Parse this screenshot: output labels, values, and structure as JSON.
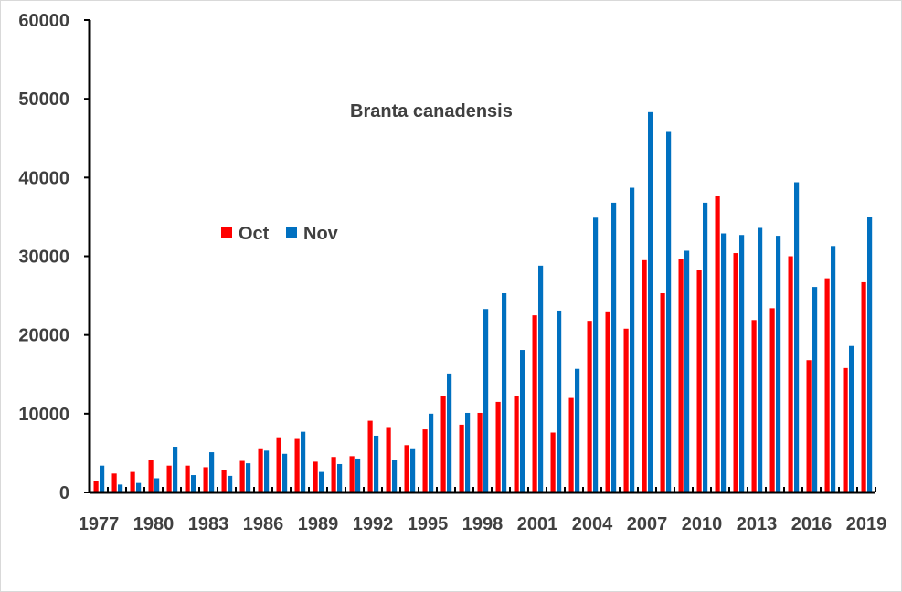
{
  "chart_data": {
    "type": "bar",
    "title": "Branta canadensis",
    "xlabel": "",
    "ylabel": "",
    "ylim": [
      0,
      60000
    ],
    "yticks": [
      0,
      10000,
      20000,
      30000,
      40000,
      50000,
      60000
    ],
    "grid": false,
    "legend_placement": "center-left",
    "categories": [
      "1977",
      "1978",
      "1979",
      "1980",
      "1981",
      "1982",
      "1983",
      "1984",
      "1985",
      "1986",
      "1987",
      "1988",
      "1989",
      "1990",
      "1991",
      "1992",
      "1993",
      "1994",
      "1995",
      "1996",
      "1997",
      "1998",
      "1999",
      "2000",
      "2001",
      "2002",
      "2003",
      "2004",
      "2005",
      "2006",
      "2007",
      "2008",
      "2009",
      "2010",
      "2011",
      "2012",
      "2013",
      "2014",
      "2015",
      "2016",
      "2017",
      "2018",
      "2019"
    ],
    "tick_label_every": 3,
    "series": [
      {
        "name": "Oct",
        "color": "#ff0000",
        "values": [
          1500,
          2400,
          2600,
          4100,
          3400,
          3400,
          3200,
          2800,
          4000,
          5600,
          7000,
          6900,
          3900,
          4500,
          4600,
          9100,
          8300,
          6000,
          8000,
          12300,
          8600,
          10100,
          11500,
          12200,
          22500,
          7600,
          12000,
          21800,
          23000,
          20800,
          29500,
          25300,
          29600,
          28200,
          37700,
          30400,
          21900,
          23400,
          30000,
          16800,
          27200,
          15800,
          26700
        ]
      },
      {
        "name": "Nov",
        "color": "#0070c0",
        "values": [
          3400,
          1000,
          1200,
          1800,
          5800,
          2200,
          5100,
          2100,
          3700,
          5300,
          4900,
          7700,
          2600,
          3600,
          4300,
          7200,
          4100,
          5600,
          10000,
          15100,
          10100,
          23300,
          25300,
          18100,
          28800,
          23100,
          15700,
          34900,
          36800,
          38700,
          48300,
          45900,
          30700,
          36800,
          32900,
          32700,
          33600,
          32600,
          39400,
          26100,
          31300,
          18600,
          35000
        ]
      }
    ]
  }
}
